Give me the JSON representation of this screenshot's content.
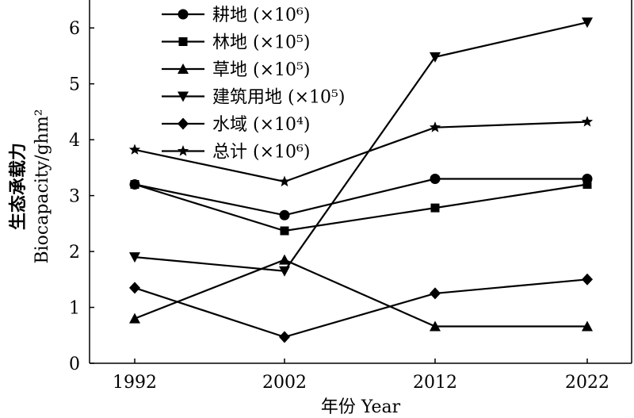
{
  "chart_data": {
    "type": "line",
    "categories": [
      "1992",
      "2002",
      "2012",
      "2022"
    ],
    "series": [
      {
        "name": "耕地 (×10⁶)",
        "marker": "circle",
        "values": [
          3.2,
          2.65,
          3.3,
          3.3
        ]
      },
      {
        "name": "林地 (×10⁵)",
        "marker": "square",
        "values": [
          3.2,
          2.37,
          2.78,
          3.2
        ]
      },
      {
        "name": "草地 (×10⁵)",
        "marker": "triangle-up",
        "values": [
          0.8,
          1.85,
          0.66,
          0.66
        ]
      },
      {
        "name": "建筑用地 (×10⁵)",
        "marker": "triangle-down",
        "values": [
          1.9,
          1.65,
          5.48,
          6.1
        ]
      },
      {
        "name": "水域 (×10⁴)",
        "marker": "diamond",
        "values": [
          1.35,
          0.47,
          1.25,
          1.5
        ]
      },
      {
        "name": "总计 (×10⁶)",
        "marker": "star",
        "values": [
          3.82,
          3.25,
          4.22,
          4.32
        ]
      }
    ],
    "xlabel": "年份 Year",
    "ylabel_cn": "生态承载力",
    "ylabel_en": "Biocapacity/ghm²",
    "ylim": [
      0,
      6.5
    ],
    "yticks": [
      0,
      1,
      2,
      3,
      4,
      5,
      6
    ],
    "grid": false,
    "legend_position": "top-left"
  }
}
